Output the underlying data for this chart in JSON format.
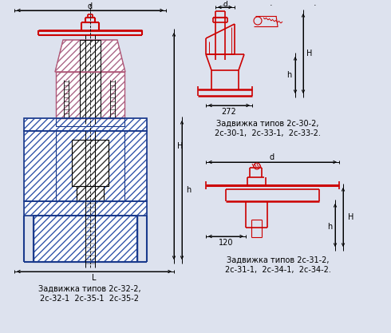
{
  "bg_color": "#dde2ee",
  "line_color_black": "#000000",
  "line_color_blue": "#1a3a8c",
  "line_color_red": "#cc0000",
  "line_color_pink": "#b05878",
  "text_color": "#000000",
  "label_left_line1": "Задвижка типов 2с-32-2,",
  "label_left_line2": "2с-32-1  2с-35-1  2с-35-2",
  "label_top_right_line1": "Задвижка типов 2с-30-2,",
  "label_top_right_line2": "2с-30-1,  2с-33-1,  2с-33-2.",
  "label_bot_right_line1": "Задвижка типов 2с-31-2,",
  "label_bot_right_line2": "2с-31-1,  2с-34-1,  2с-34-2.",
  "dim_272": "272",
  "dim_120": "120",
  "dim_d": "d",
  "dim_h": "h",
  "dim_H": "H",
  "dim_L": "L"
}
